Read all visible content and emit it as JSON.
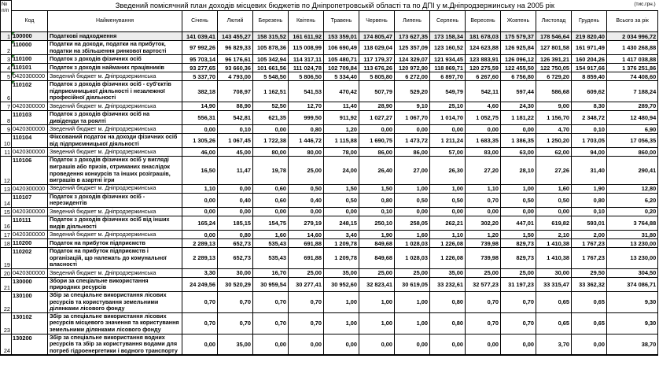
{
  "title": "Зведений помісячний план доходів місцевих бюджетів по Дніпропетровській області та по ДПІ у м.Дніпродзержинську на 2005 рік",
  "unit_note": "(тис.грн.)",
  "columns": {
    "num": "№\nп/п",
    "code": "Код",
    "name": "Найменування",
    "months": [
      "Січень",
      "Лютий",
      "Березень",
      "Квітень",
      "Травень",
      "Червень",
      "Липень",
      "Серпень",
      "Вересень",
      "Жовтень",
      "Листопад",
      "Грудень"
    ],
    "total": "Всього за рік"
  },
  "rows": [
    {
      "n": 1,
      "code": "100000",
      "name": "Податкові надходження",
      "bold": true,
      "marker": true,
      "shaded": true,
      "values": [
        "141 039,41",
        "143 455,27",
        "158 315,52",
        "161 611,92",
        "153 359,01",
        "174 805,47",
        "173 627,35",
        "173 158,34",
        "181 678,03",
        "175 579,37",
        "178 546,64",
        "219 820,40"
      ],
      "total": "2 034 996,72"
    },
    {
      "n": 2,
      "code": "110000",
      "name": "Податки на доходи, податки на прибуток, податки на збільшення ринкової вартості",
      "bold": true,
      "marker": true,
      "values": [
        "97 992,26",
        "96 829,33",
        "105 878,36",
        "115 008,99",
        "106 690,49",
        "118 029,04",
        "125 357,09",
        "123 160,52",
        "124 623,88",
        "126 925,84",
        "127 801,58",
        "161 971,49"
      ],
      "total": "1 430 268,88"
    },
    {
      "n": 3,
      "code": "110100",
      "name": "Податок з доходів фізичних осіб",
      "bold": true,
      "marker": true,
      "values": [
        "95 703,14",
        "96 176,61",
        "105 342,94",
        "114 317,11",
        "105 480,71",
        "117 179,37",
        "124 329,07",
        "121 934,45",
        "123 883,91",
        "126 096,12",
        "126 391,21",
        "160 204,26"
      ],
      "total": "1 417 038,88"
    },
    {
      "n": 4,
      "code": "110101",
      "name": "Податок з доходів найманих працівників",
      "bold": true,
      "marker": true,
      "values": [
        "93 277,65",
        "93 660,36",
        "101 661,56",
        "111 024,78",
        "102 709,84",
        "113 676,26",
        "120 972,90",
        "118 869,71",
        "120 275,59",
        "122 455,50",
        "122 750,05",
        "154 917,66"
      ],
      "total": "1 376 251,86"
    },
    {
      "n": 5,
      "code": "0420300000",
      "name": "Зведений бюджет м. Дніпродзержинська",
      "bold": false,
      "marker": true,
      "values": [
        "5 337,70",
        "4 793,00",
        "5 548,50",
        "5 806,50",
        "5 334,40",
        "5 805,80",
        "6 272,00",
        "6 897,70",
        "6 267,60",
        "6 756,80",
        "6 729,20",
        "8 859,40"
      ],
      "total": "74 408,60"
    },
    {
      "n": 6,
      "code": "110102",
      "name": "Податок з доходів фізичних осіб - суб'єктів підприємницької діяльності і незалежної професійної діяльності",
      "bold": true,
      "marker": true,
      "values": [
        "382,18",
        "708,97",
        "1 162,51",
        "541,53",
        "470,42",
        "507,79",
        "529,20",
        "549,79",
        "542,11",
        "597,44",
        "586,68",
        "609,62"
      ],
      "total": "7 188,24"
    },
    {
      "n": 7,
      "code": "0420300000",
      "name": "Зведений бюджет м. Дніпродзержинська",
      "bold": false,
      "values": [
        "14,90",
        "88,90",
        "52,50",
        "12,70",
        "11,40",
        "28,90",
        "9,10",
        "25,10",
        "4,60",
        "24,30",
        "9,00",
        "8,30"
      ],
      "total": "289,70"
    },
    {
      "n": 8,
      "code": "110103",
      "name": "Податок з доходів фізичних осіб на дивіденди та роялті",
      "bold": true,
      "values": [
        "556,31",
        "542,81",
        "621,35",
        "999,50",
        "911,92",
        "1 027,27",
        "1 067,70",
        "1 014,70",
        "1 052,75",
        "1 181,22",
        "1 156,70",
        "2 348,72"
      ],
      "total": "12 480,94"
    },
    {
      "n": 9,
      "code": "0420300000",
      "name": "Зведений бюджет м. Дніпродзержинська",
      "bold": false,
      "values": [
        "0,00",
        "0,10",
        "0,00",
        "0,80",
        "1,20",
        "0,00",
        "0,00",
        "0,00",
        "0,00",
        "0,00",
        "4,70",
        "0,10"
      ],
      "total": "6,90"
    },
    {
      "n": 10,
      "code": "110104",
      "name": "Фіксований податок на доходи фізичних осіб від підприємницької діяльності",
      "bold": true,
      "values": [
        "1 305,26",
        "1 067,45",
        "1 722,38",
        "1 446,72",
        "1 115,88",
        "1 690,75",
        "1 473,72",
        "1 211,24",
        "1 683,35",
        "1 386,35",
        "1 250,20",
        "1 703,05"
      ],
      "total": "17 056,35"
    },
    {
      "n": 11,
      "code": "0420300000",
      "name": "Зведений бюджет м. Дніпродзержинська",
      "bold": false,
      "values": [
        "46,00",
        "45,00",
        "80,00",
        "80,00",
        "78,00",
        "86,00",
        "86,00",
        "57,00",
        "83,00",
        "63,00",
        "62,00",
        "94,00"
      ],
      "total": "860,00"
    },
    {
      "n": 12,
      "code": "110106",
      "name": "Податок з доходів фізичних осіб у вигляді виграшів або  призів, отриманих внаслідок проведення конкурсів та інших розіграшів, виграшів в азартні ігри",
      "bold": true,
      "values": [
        "16,50",
        "11,47",
        "19,78",
        "25,00",
        "24,00",
        "26,40",
        "27,00",
        "26,30",
        "27,20",
        "28,10",
        "27,26",
        "31,40"
      ],
      "total": "290,41"
    },
    {
      "n": 13,
      "code": "0420300000",
      "name": "Зведений бюджет м. Дніпродзержинська",
      "bold": false,
      "values": [
        "1,10",
        "0,00",
        "0,60",
        "0,50",
        "1,50",
        "1,50",
        "1,00",
        "1,00",
        "1,10",
        "1,00",
        "1,60",
        "1,90"
      ],
      "total": "12,80"
    },
    {
      "n": 14,
      "code": "110107",
      "name": "Податок з доходів фізичних осіб - нерезидентів",
      "bold": true,
      "values": [
        "0,00",
        "0,40",
        "0,60",
        "0,40",
        "0,50",
        "0,80",
        "0,50",
        "0,50",
        "0,70",
        "0,50",
        "0,50",
        "0,80"
      ],
      "total": "6,20"
    },
    {
      "n": 15,
      "code": "0420300000",
      "name": "Зведений бюджет м. Дніпродзержинська",
      "bold": false,
      "values": [
        "0,00",
        "0,00",
        "0,00",
        "0,00",
        "0,00",
        "0,10",
        "0,00",
        "0,00",
        "0,00",
        "0,00",
        "0,00",
        "0,10"
      ],
      "total": "0,20"
    },
    {
      "n": 16,
      "code": "110111",
      "name": "Податок з доходів фізичних осіб від інших видів діяльності",
      "bold": true,
      "values": [
        "165,24",
        "185,15",
        "154,75",
        "279,19",
        "248,15",
        "250,10",
        "258,05",
        "262,21",
        "302,20",
        "447,01",
        "619,82",
        "593,01"
      ],
      "total": "3 764,88"
    },
    {
      "n": 17,
      "code": "0420300000",
      "name": "Зведений бюджет м. Дніпродзержинська",
      "bold": false,
      "values": [
        "0,00",
        "0,80",
        "1,60",
        "14,60",
        "3,40",
        "1,90",
        "1,60",
        "1,10",
        "1,20",
        "1,50",
        "2,10",
        "2,00"
      ],
      "total": "31,80"
    },
    {
      "n": 18,
      "code": "110200",
      "name": "Податок на прибуток підприємств",
      "bold": true,
      "values": [
        "2 289,13",
        "652,73",
        "535,43",
        "691,88",
        "1 209,78",
        "849,68",
        "1 028,03",
        "1 226,08",
        "739,98",
        "829,73",
        "1 410,38",
        "1 767,23"
      ],
      "total": "13 230,00"
    },
    {
      "n": 19,
      "code": "110202",
      "name": "Податок на прибуток підприємств і організацій, що належать до комунальної власності",
      "bold": true,
      "values": [
        "2 289,13",
        "652,73",
        "535,43",
        "691,88",
        "1 209,78",
        "849,68",
        "1 028,03",
        "1 226,08",
        "739,98",
        "829,73",
        "1 410,38",
        "1 767,23"
      ],
      "total": "13 230,00"
    },
    {
      "n": 20,
      "code": "0420300000",
      "name": "Зведений бюджет м. Дніпродзержинська",
      "bold": false,
      "values": [
        "3,30",
        "30,00",
        "16,70",
        "25,00",
        "35,00",
        "25,00",
        "25,00",
        "35,00",
        "25,00",
        "25,00",
        "30,00",
        "29,50"
      ],
      "total": "304,50"
    },
    {
      "n": 21,
      "code": "130000",
      "name": "Збори за спеціальне використання природних ресурсів",
      "bold": true,
      "values": [
        "24 249,56",
        "30 520,29",
        "30 959,54",
        "30 277,41",
        "30 952,60",
        "32 823,41",
        "30 619,05",
        "33 232,61",
        "32 577,23",
        "31 197,23",
        "33 315,47",
        "33 362,32"
      ],
      "total": "374 086,71"
    },
    {
      "n": 22,
      "code": "130100",
      "name": "Збір за  спеціальне використання лісових ресурсів та користування земельними ділянками лісового фонду",
      "bold": true,
      "values": [
        "0,70",
        "0,70",
        "0,70",
        "0,70",
        "1,00",
        "1,00",
        "1,00",
        "0,80",
        "0,70",
        "0,70",
        "0,65",
        "0,65"
      ],
      "total": "9,30"
    },
    {
      "n": 23,
      "code": "130102",
      "name": "Збір за спеціальне використання лісових ресурсів місцевого значення та користування земельними ділянками лісового фонду",
      "bold": true,
      "values": [
        "0,70",
        "0,70",
        "0,70",
        "0,70",
        "1,00",
        "1,00",
        "1,00",
        "0,80",
        "0,70",
        "0,70",
        "0,65",
        "0,65"
      ],
      "total": "9,30"
    },
    {
      "n": 24,
      "code": "130200",
      "name": "Збір за спеціальне використання водних ресурсів та збір за користування водами для потреб гідроенергетики і водного транспорту",
      "bold": true,
      "values": [
        "0,00",
        "35,00",
        "0,00",
        "0,00",
        "0,00",
        "0,00",
        "0,00",
        "0,00",
        "0,00",
        "0,00",
        "3,70",
        "0,00"
      ],
      "total": "38,70"
    }
  ]
}
